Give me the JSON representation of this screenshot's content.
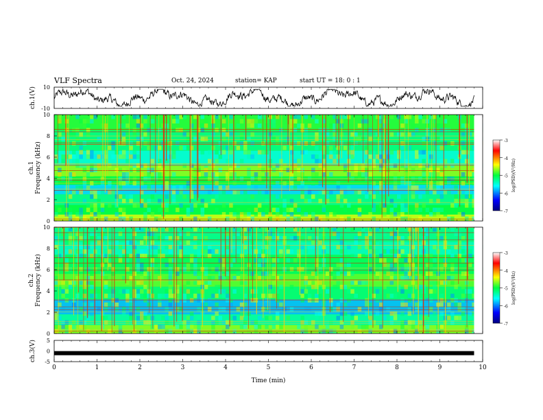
{
  "header": {
    "title": "VLF Spectra",
    "date": "Oct. 24, 2024",
    "station": "station= KAP",
    "start_ut": "start UT =  18: 0  : 1"
  },
  "chart_data": [
    {
      "type": "line",
      "panel": "ch1-waveform",
      "ylabel": "ch.1(V)",
      "ylim": [
        -10,
        10
      ],
      "y_ticks": [
        "10",
        "-10"
      ],
      "xlim": [
        0,
        10
      ],
      "description_of_series": "noisy waveform fluctuating roughly between -5 and 5 V"
    },
    {
      "type": "heatmap",
      "panel": "ch1-spectrogram",
      "ylabel_top": "ch.1",
      "ylabel": "Frequency (kHz)",
      "ylim": [
        0,
        10
      ],
      "y_ticks": [
        "0",
        "2",
        "4",
        "6",
        "8",
        "10"
      ],
      "xlim": [
        0,
        10
      ],
      "colorbar": {
        "label": "log(PSD)(V²/Hz)",
        "range": [
          -7,
          -3
        ],
        "ticks": [
          "-3",
          "-4",
          "-5",
          "-6",
          "-7"
        ]
      }
    },
    {
      "type": "heatmap",
      "panel": "ch2-spectrogram",
      "ylabel_top": "ch.2",
      "ylabel": "Frequency (kHz)",
      "ylim": [
        0,
        10
      ],
      "y_ticks": [
        "0",
        "2",
        "4",
        "6",
        "8",
        "10"
      ],
      "xlim": [
        0,
        10
      ],
      "colorbar": {
        "label": "log(PSD)(V²/Hz)",
        "range": [
          -7,
          -3
        ],
        "ticks": [
          "-3",
          "-4",
          "-5",
          "-6",
          "-7"
        ]
      }
    },
    {
      "type": "line",
      "panel": "ch3-waveform",
      "ylabel": "ch.3(V)",
      "ylim": [
        -5,
        5
      ],
      "y_ticks": [
        "5",
        "0",
        "-5"
      ],
      "xlim": [
        0,
        10
      ],
      "x_ticks": [
        "0",
        "1",
        "2",
        "3",
        "4",
        "5",
        "6",
        "7",
        "8",
        "9",
        "10"
      ],
      "xlabel": "Time (min)",
      "constant_value": -1,
      "x_end": 9.8
    }
  ],
  "colors": {
    "low": "#00008f",
    "mid": "#00ff80",
    "high": "#ff0000"
  }
}
